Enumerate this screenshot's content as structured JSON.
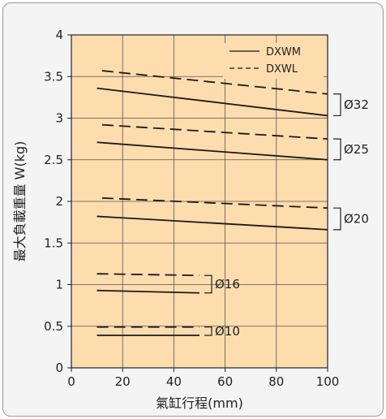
{
  "chart_data": {
    "type": "line",
    "title": "",
    "xlabel": "氣缸行程(mm)",
    "ylabel": "最大負載重量 W(kg)",
    "xlim": [
      0,
      100
    ],
    "ylim": [
      0,
      4
    ],
    "x_ticks": [
      "0",
      "20",
      "40",
      "60",
      "80",
      "100"
    ],
    "y_ticks": [
      "0",
      "0.5",
      "1",
      "1.5",
      "2",
      "2.5",
      "3",
      "3.5",
      "4"
    ],
    "grid": true,
    "background": "#fddcae",
    "legend_position": "top-right",
    "legend": [
      {
        "name": "DXWM",
        "style": "solid"
      },
      {
        "name": "DXWL",
        "style": "dashed"
      }
    ],
    "series": [
      {
        "model": "DXWM",
        "group": "Ø32",
        "style": "solid",
        "points": [
          [
            10,
            3.36
          ],
          [
            100,
            3.03
          ]
        ]
      },
      {
        "model": "DXWL",
        "group": "Ø32",
        "style": "dashed",
        "points": [
          [
            12,
            3.57
          ],
          [
            100,
            3.29
          ]
        ]
      },
      {
        "model": "DXWM",
        "group": "Ø25",
        "style": "solid",
        "points": [
          [
            10,
            2.71
          ],
          [
            100,
            2.5
          ]
        ]
      },
      {
        "model": "DXWL",
        "group": "Ø25",
        "style": "dashed",
        "points": [
          [
            12,
            2.92
          ],
          [
            100,
            2.75
          ]
        ]
      },
      {
        "model": "DXWM",
        "group": "Ø20",
        "style": "solid",
        "points": [
          [
            10,
            1.82
          ],
          [
            100,
            1.66
          ]
        ]
      },
      {
        "model": "DXWL",
        "group": "Ø20",
        "style": "dashed",
        "points": [
          [
            12,
            2.04
          ],
          [
            100,
            1.92
          ]
        ]
      },
      {
        "model": "DXWM",
        "group": "Ø16",
        "style": "solid",
        "points": [
          [
            10,
            0.93
          ],
          [
            50,
            0.9
          ]
        ]
      },
      {
        "model": "DXWL",
        "group": "Ø16",
        "style": "dashed",
        "points": [
          [
            10,
            1.13
          ],
          [
            50,
            1.11
          ]
        ]
      },
      {
        "model": "DXWM",
        "group": "Ø10",
        "style": "solid",
        "points": [
          [
            10,
            0.39
          ],
          [
            50,
            0.39
          ]
        ]
      },
      {
        "model": "DXWL",
        "group": "Ø10",
        "style": "dashed",
        "points": [
          [
            10,
            0.49
          ],
          [
            50,
            0.49
          ]
        ]
      }
    ],
    "group_labels": [
      "Ø32",
      "Ø25",
      "Ø20",
      "Ø16",
      "Ø10"
    ]
  }
}
